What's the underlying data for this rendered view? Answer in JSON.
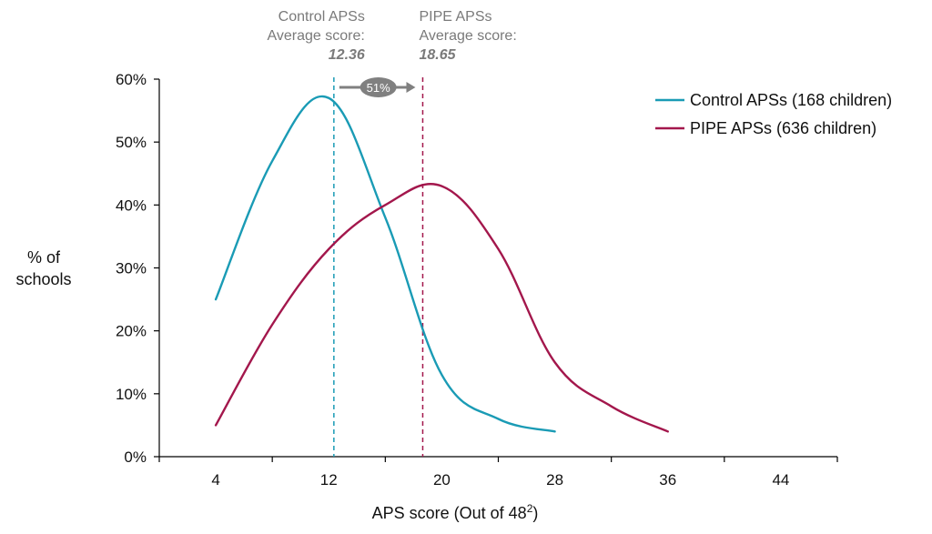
{
  "chart_data": {
    "type": "line",
    "title": "",
    "xlabel": "APS score (Out of 48",
    "xlabel_superscript": "2",
    "xlabel_suffix": ")",
    "ylabel_lines": [
      "% of",
      "schools"
    ],
    "xlim": [
      0,
      48
    ],
    "ylim": [
      0,
      60
    ],
    "x_ticks": [
      4,
      12,
      20,
      28,
      36,
      44
    ],
    "y_ticks": [
      "0%",
      "10%",
      "20%",
      "30%",
      "40%",
      "50%",
      "60%"
    ],
    "y_tick_values": [
      0,
      10,
      20,
      30,
      40,
      50,
      60
    ],
    "grid": false,
    "legend_position": "top-right",
    "series": [
      {
        "name": "Control APSs (168 children)",
        "color": "#1a9bb5",
        "x": [
          4,
          8,
          12,
          16,
          20,
          24,
          28
        ],
        "y": [
          25,
          47,
          57,
          38,
          13,
          6,
          4
        ]
      },
      {
        "name": "PIPE APSs (636 children)",
        "color": "#a3174c",
        "x": [
          4,
          8,
          12,
          16,
          20,
          24,
          28,
          32,
          36
        ],
        "y": [
          5,
          21,
          33,
          40,
          43,
          33,
          15,
          8,
          4
        ]
      }
    ],
    "reference_lines": [
      {
        "x": 12.36,
        "color": "#1a9bb5",
        "label_lines": [
          "Control APSs",
          "Average score:"
        ],
        "value_label": "12.36"
      },
      {
        "x": 18.65,
        "color": "#a3174c",
        "label_lines": [
          "PIPE APSs",
          "Average score:"
        ],
        "value_label": "18.65"
      }
    ],
    "difference_badge": {
      "label": "51%",
      "color": "#808080"
    }
  }
}
